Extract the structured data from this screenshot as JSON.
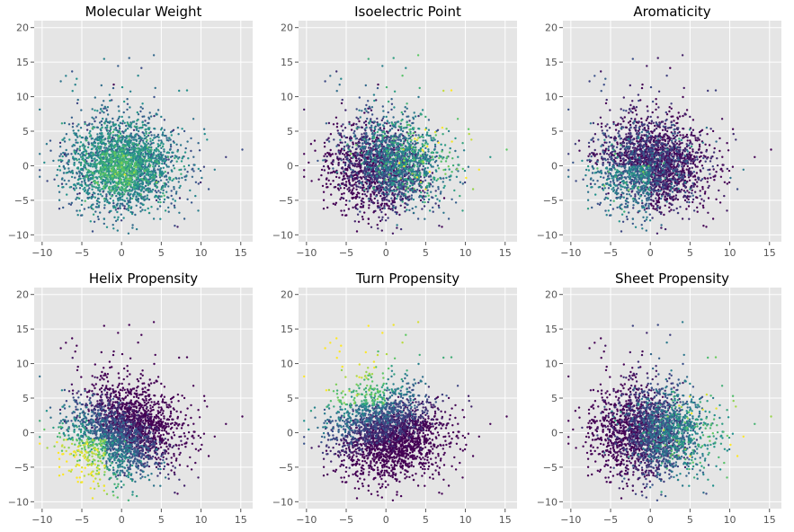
{
  "chart_data": [
    {
      "type": "scatter",
      "title": "Molecular Weight",
      "xlim": [
        -11,
        16.5
      ],
      "ylim": [
        -11,
        21
      ],
      "xticks": [
        -10,
        -5,
        0,
        5,
        10,
        15
      ],
      "yticks": [
        -10,
        -5,
        0,
        5,
        10,
        15,
        20
      ],
      "grid": true,
      "colormap": "viridis",
      "pattern": "dense, mostly mid-range colors (teal/green) with yellow-green highlights near center",
      "num_points_estimate": 6000
    },
    {
      "type": "scatter",
      "title": "Isoelectric Point",
      "xlim": [
        -11,
        16.5
      ],
      "ylim": [
        -11,
        21
      ],
      "xticks": [
        -10,
        -5,
        0,
        5,
        10,
        15
      ],
      "yticks": [
        -10,
        -5,
        0,
        5,
        10,
        15,
        20
      ],
      "grid": true,
      "colormap": "viridis",
      "pattern": "mostly blue/purple with green/yellow points scattered toward upper-right",
      "num_points_estimate": 6000
    },
    {
      "type": "scatter",
      "title": "Aromaticity",
      "xlim": [
        -11,
        16.5
      ],
      "ylim": [
        -11,
        21
      ],
      "xticks": [
        -10,
        -5,
        0,
        5,
        10,
        15
      ],
      "yticks": [
        -10,
        -5,
        0,
        5,
        10,
        15,
        20
      ],
      "grid": true,
      "colormap": "viridis",
      "pattern": "mostly dark purple with teal/green concentrated in lower-left",
      "num_points_estimate": 6000
    },
    {
      "type": "scatter",
      "title": "Helix Propensity",
      "xlim": [
        -11,
        16.5
      ],
      "ylim": [
        -11,
        21
      ],
      "xticks": [
        -10,
        -5,
        0,
        5,
        10,
        15
      ],
      "yticks": [
        -10,
        -5,
        0,
        5,
        10,
        15,
        20
      ],
      "grid": true,
      "colormap": "viridis",
      "pattern": "purple in upper/right, teal to yellow concentrated in lower-left",
      "num_points_estimate": 6000
    },
    {
      "type": "scatter",
      "title": "Turn Propensity",
      "xlim": [
        -11,
        16.5
      ],
      "ylim": [
        -11,
        21
      ],
      "xticks": [
        -10,
        -5,
        0,
        5,
        10,
        15
      ],
      "yticks": [
        -10,
        -5,
        0,
        5,
        10,
        15,
        20
      ],
      "grid": true,
      "colormap": "viridis",
      "pattern": "dark purple in lower region, green/yellow concentrated in upper-left",
      "num_points_estimate": 6000
    },
    {
      "type": "scatter",
      "title": "Sheet Propensity",
      "xlim": [
        -11,
        16.5
      ],
      "ylim": [
        -11,
        21
      ],
      "xticks": [
        -10,
        -5,
        0,
        5,
        10,
        15
      ],
      "yticks": [
        -10,
        -5,
        0,
        5,
        10,
        15,
        20
      ],
      "grid": true,
      "colormap": "viridis",
      "pattern": "purple/blue overall with green/yellow toward the right side",
      "num_points_estimate": 6000
    }
  ],
  "colors": {
    "panel_background": "#e5e5e5",
    "grid": "#ffffff",
    "viridis": [
      "#440154",
      "#3b528b",
      "#21918c",
      "#5ec962",
      "#fde725"
    ]
  }
}
